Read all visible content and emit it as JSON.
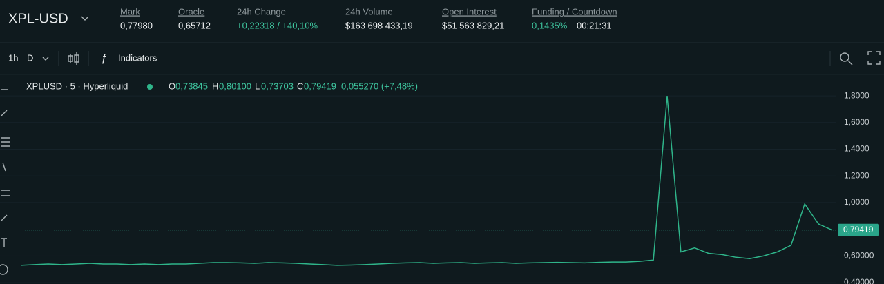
{
  "header": {
    "symbol": "XPL-USD",
    "stats": [
      {
        "label": "Mark",
        "value": "0,77980"
      },
      {
        "label": "Oracle",
        "value": "0,65712"
      },
      {
        "label": "24h Change",
        "value": "+0,22318 / +40,10%"
      },
      {
        "label": "24h Volume",
        "value": "$163 698 433,19"
      },
      {
        "label": "Open Interest",
        "value": "$51 563 829,21"
      }
    ],
    "funding": {
      "label": "Funding / Countdown",
      "rate": "0,1435%",
      "countdown": "00:21:31"
    }
  },
  "toolbar": {
    "interval": "1h",
    "period": "D",
    "indicators": "Indicators"
  },
  "chart": {
    "type": "line",
    "legend": {
      "title": "XPLUSD · 5 · Hyperliquid",
      "open_label": "O",
      "open": "0,73845",
      "high_label": "H",
      "high": "0,80100",
      "low_label": "L",
      "low": "0,73703",
      "close_label": "C",
      "close": "0,79419",
      "change": "0,055270 (+7,48%)"
    },
    "values": [
      0.53,
      0.535,
      0.54,
      0.535,
      0.54,
      0.545,
      0.54,
      0.54,
      0.535,
      0.54,
      0.535,
      0.54,
      0.54,
      0.545,
      0.55,
      0.55,
      0.548,
      0.545,
      0.55,
      0.548,
      0.545,
      0.54,
      0.535,
      0.53,
      0.532,
      0.535,
      0.54,
      0.545,
      0.548,
      0.55,
      0.545,
      0.548,
      0.55,
      0.545,
      0.548,
      0.55,
      0.545,
      0.548,
      0.55,
      0.552,
      0.55,
      0.548,
      0.552,
      0.555,
      0.555,
      0.56,
      0.57,
      1.8,
      0.63,
      0.66,
      0.62,
      0.61,
      0.59,
      0.58,
      0.6,
      0.63,
      0.68,
      0.99,
      0.84,
      0.79419
    ],
    "color": "#2fb58a",
    "ylim": [
      0.39,
      1.94
    ],
    "yticks": [
      {
        "value": 1.8,
        "label": "1,8000"
      },
      {
        "value": 1.6,
        "label": "1,6000"
      },
      {
        "value": 1.4,
        "label": "1,4000"
      },
      {
        "value": 1.2,
        "label": "1,2000"
      },
      {
        "value": 1.0,
        "label": "1,0000"
      },
      {
        "value": 0.6,
        "label": "0,60000"
      },
      {
        "value": 0.4,
        "label": "0,40000"
      }
    ],
    "grid": true,
    "last_price": {
      "value": 0.79419,
      "label": "0,79419"
    }
  }
}
